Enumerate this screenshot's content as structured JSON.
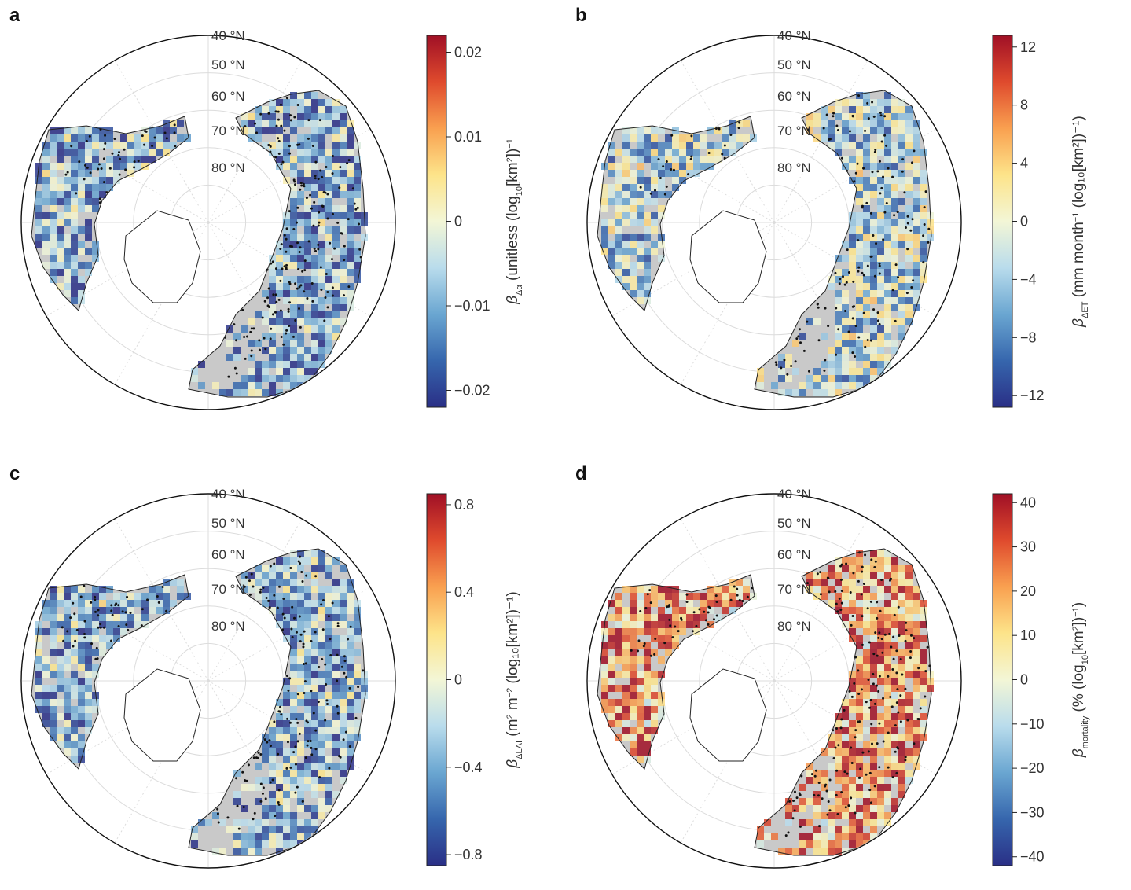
{
  "latitude_labels": [
    "40 °N",
    "50 °N",
    "60 °N",
    "70 °N",
    "80 °N"
  ],
  "panels": [
    {
      "letter": "a",
      "colorbar": {
        "ticks": [
          "0.02",
          "0.01",
          "0",
          "−0.01",
          "−0.02"
        ],
        "tick_values": [
          0.02,
          0.01,
          0,
          -0.01,
          -0.02
        ],
        "vmin": -0.022,
        "vmax": 0.022,
        "label_symbol": "β",
        "label_subscript": "Δα",
        "label_text": " (unitless (log",
        "label_sub10": "10",
        "label_tail": "[km",
        "label_sup2": "2",
        "label_end": "])",
        "label_sup_neg1": "−1",
        "label_close": ""
      },
      "palette": "diverging",
      "bias": -0.6,
      "stipple_strength": 0.8
    },
    {
      "letter": "b",
      "colorbar": {
        "ticks": [
          "12",
          "8",
          "4",
          "0",
          "−4",
          "−8",
          "−12"
        ],
        "tick_values": [
          12,
          8,
          4,
          0,
          -4,
          -8,
          -12
        ],
        "vmin": -12.8,
        "vmax": 12.8,
        "label_symbol": "β",
        "label_subscript": "ΔET",
        "label_text": " (mm month",
        "label_sub10": "",
        "label_tail": "",
        "label_sup2": "",
        "label_end": "",
        "label_sup_neg1": "−1",
        "label_close": " (log₁₀[km²])⁻¹)"
      },
      "palette": "diverging",
      "bias": -0.3,
      "stipple_strength": 0.55
    },
    {
      "letter": "c",
      "colorbar": {
        "ticks": [
          "0.8",
          "0.4",
          "0",
          "−0.4",
          "−0.8"
        ],
        "tick_values": [
          0.8,
          0.4,
          0,
          -0.4,
          -0.8
        ],
        "vmin": -0.85,
        "vmax": 0.85,
        "label_symbol": "β",
        "label_subscript": "ΔLAI",
        "label_text": " (m",
        "label_sub10": "",
        "label_tail": "",
        "label_sup2": "2",
        "label_end": " m",
        "label_sup_neg1": "−2",
        "label_close": " (log₁₀[km²])⁻¹)"
      },
      "palette": "diverging",
      "bias": -0.55,
      "stipple_strength": 0.8
    },
    {
      "letter": "d",
      "colorbar": {
        "ticks": [
          "40",
          "30",
          "20",
          "10",
          "0",
          "−10",
          "−20",
          "−30",
          "−40"
        ],
        "tick_values": [
          40,
          30,
          20,
          10,
          0,
          -10,
          -20,
          -30,
          -40
        ],
        "vmin": -42,
        "vmax": 42,
        "label_symbol": "β",
        "label_subscript": "mortality",
        "label_text": " (% (log",
        "label_sub10": "10",
        "label_tail": "[km",
        "label_sup2": "2",
        "label_end": "])",
        "label_sup_neg1": "−1",
        "label_close": ")"
      },
      "palette": "diverging",
      "bias": 0.6,
      "stipple_strength": 0.85
    }
  ],
  "colors": {
    "cmap": [
      "#2a2f86",
      "#3666ad",
      "#6aa6d1",
      "#b9dcec",
      "#f3f6d6",
      "#fde48a",
      "#f9a050",
      "#df4a2d",
      "#a01026"
    ],
    "land_gray": "#c9c9c9",
    "coast": "#222222",
    "grid": "#dcdcdc",
    "stipple": "#111111"
  }
}
